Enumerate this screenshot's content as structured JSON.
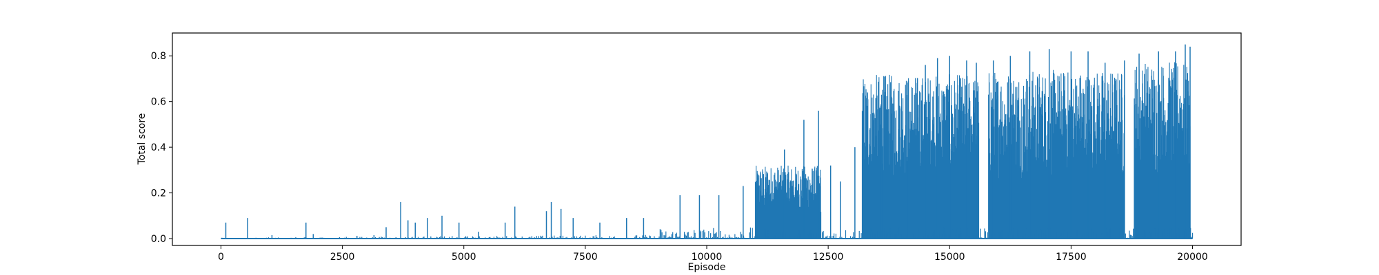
{
  "chart_data": {
    "type": "line",
    "title": "",
    "xlabel": "Episode",
    "ylabel": "Total score",
    "xlim": [
      -1000,
      21000
    ],
    "ylim": [
      -0.03,
      0.9
    ],
    "xticks": [
      0,
      2500,
      5000,
      7500,
      10000,
      12500,
      15000,
      17500,
      20000
    ],
    "xtick_labels": [
      "0",
      "2500",
      "5000",
      "7500",
      "10000",
      "12500",
      "15000",
      "17500",
      "20000"
    ],
    "yticks": [
      0.0,
      0.2,
      0.4,
      0.6,
      0.8
    ],
    "ytick_labels": [
      "0.0",
      "0.2",
      "0.4",
      "0.6",
      "0.8"
    ],
    "grid": false,
    "legend": "none",
    "series": [
      {
        "color": "#1f77b4",
        "baseline": 0.0,
        "x_start": 0,
        "x_end": 20000,
        "episodes": 20000,
        "spikes": [
          {
            "x": 100,
            "y": 0.07
          },
          {
            "x": 550,
            "y": 0.09
          },
          {
            "x": 1050,
            "y": 0.015
          },
          {
            "x": 1750,
            "y": 0.07
          },
          {
            "x": 1900,
            "y": 0.02
          },
          {
            "x": 2800,
            "y": 0.012
          },
          {
            "x": 3150,
            "y": 0.015
          },
          {
            "x": 3400,
            "y": 0.05
          },
          {
            "x": 3700,
            "y": 0.16
          },
          {
            "x": 3850,
            "y": 0.08
          },
          {
            "x": 4000,
            "y": 0.07
          },
          {
            "x": 4250,
            "y": 0.09
          },
          {
            "x": 4550,
            "y": 0.1
          },
          {
            "x": 4900,
            "y": 0.07
          },
          {
            "x": 5300,
            "y": 0.03
          },
          {
            "x": 5850,
            "y": 0.07
          },
          {
            "x": 6050,
            "y": 0.14
          },
          {
            "x": 6700,
            "y": 0.12
          },
          {
            "x": 6800,
            "y": 0.16
          },
          {
            "x": 7000,
            "y": 0.13
          },
          {
            "x": 7250,
            "y": 0.09
          },
          {
            "x": 7800,
            "y": 0.07
          },
          {
            "x": 8350,
            "y": 0.09
          },
          {
            "x": 8700,
            "y": 0.09
          },
          {
            "x": 9450,
            "y": 0.19
          },
          {
            "x": 9850,
            "y": 0.19
          },
          {
            "x": 10250,
            "y": 0.19
          },
          {
            "x": 10750,
            "y": 0.23
          },
          {
            "x": 11050,
            "y": 0.26
          },
          {
            "x": 11600,
            "y": 0.39
          },
          {
            "x": 12000,
            "y": 0.52
          },
          {
            "x": 12300,
            "y": 0.56
          },
          {
            "x": 12550,
            "y": 0.32
          },
          {
            "x": 12750,
            "y": 0.25
          },
          {
            "x": 13050,
            "y": 0.4
          },
          {
            "x": 13250,
            "y": 0.42
          },
          {
            "x": 13600,
            "y": 0.63
          },
          {
            "x": 14150,
            "y": 0.69
          },
          {
            "x": 14500,
            "y": 0.76
          },
          {
            "x": 14750,
            "y": 0.79
          },
          {
            "x": 15000,
            "y": 0.8
          },
          {
            "x": 15350,
            "y": 0.78
          },
          {
            "x": 15550,
            "y": 0.77
          },
          {
            "x": 15900,
            "y": 0.78
          },
          {
            "x": 16250,
            "y": 0.8
          },
          {
            "x": 16650,
            "y": 0.82
          },
          {
            "x": 17050,
            "y": 0.83
          },
          {
            "x": 17500,
            "y": 0.82
          },
          {
            "x": 17850,
            "y": 0.82
          },
          {
            "x": 18200,
            "y": 0.77
          },
          {
            "x": 18600,
            "y": 0.78
          },
          {
            "x": 18900,
            "y": 0.81
          },
          {
            "x": 19300,
            "y": 0.82
          },
          {
            "x": 19650,
            "y": 0.82
          },
          {
            "x": 19850,
            "y": 0.85
          },
          {
            "x": 19950,
            "y": 0.84
          }
        ],
        "dense_regions": [
          {
            "x0": 11000,
            "x1": 12350,
            "y_min": 0.0,
            "y_max": 0.32
          },
          {
            "x0": 13200,
            "x1": 15600,
            "y_min": 0.0,
            "y_max": 0.72
          },
          {
            "x0": 15800,
            "x1": 18600,
            "y_min": 0.0,
            "y_max": 0.74
          },
          {
            "x0": 18800,
            "x1": 19950,
            "y_min": 0.0,
            "y_max": 0.78
          }
        ]
      }
    ]
  }
}
